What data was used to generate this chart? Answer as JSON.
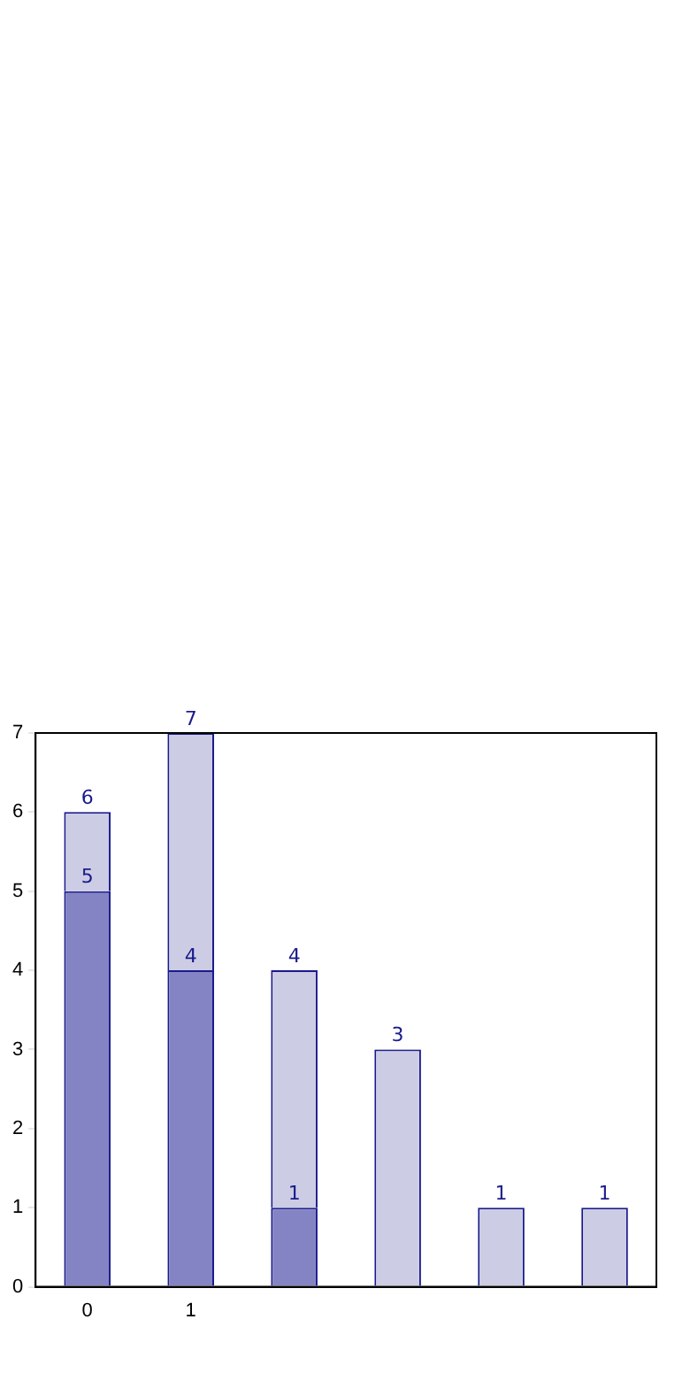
{
  "chart_data": {
    "type": "bar",
    "categories": [
      "0",
      "1",
      null,
      null,
      null,
      null
    ],
    "stacked": true,
    "series": [
      {
        "color": "#8484c4",
        "values": [
          5,
          4,
          1,
          null,
          null,
          null
        ],
        "value_labels": [
          "5",
          "4",
          "1",
          null,
          null,
          null
        ]
      },
      {
        "color": "#ccccE4",
        "values": [
          1,
          3,
          3,
          3,
          1,
          1
        ]
      }
    ],
    "totals": [
      "6",
      "7",
      "4",
      "3",
      "1",
      "1"
    ],
    "ylim": [
      0,
      7
    ],
    "yticks": [
      0,
      1,
      2,
      3,
      4,
      5,
      6,
      7
    ],
    "grid": false,
    "legend": false
  }
}
